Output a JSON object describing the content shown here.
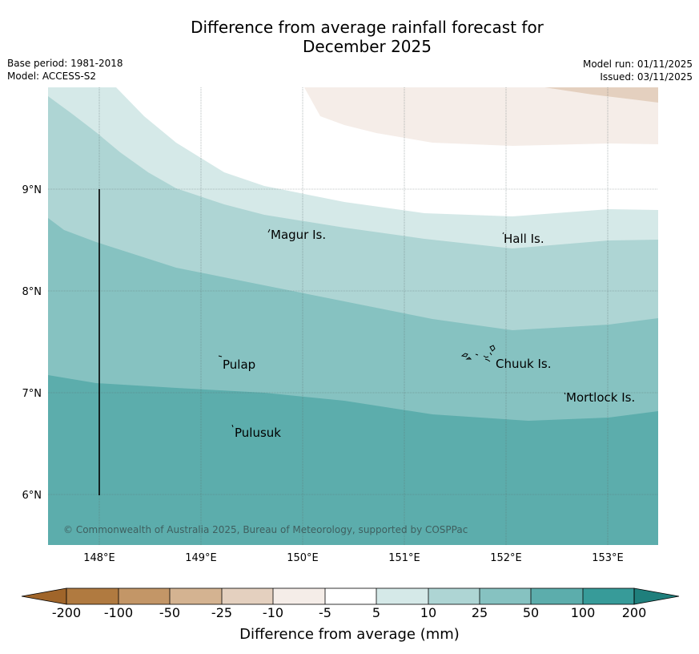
{
  "title_line1": "Difference from average rainfall forecast for",
  "title_line2": "December 2025",
  "meta": {
    "base_period": "Base period: 1981-2018",
    "model": "Model: ACCESS-S2",
    "model_run": "Model run: 01/11/2025",
    "issued": "Issued: 03/11/2025"
  },
  "map": {
    "lon_labels": [
      "148°E",
      "149°E",
      "150°E",
      "151°E",
      "152°E",
      "153°E"
    ],
    "lat_labels": [
      "9°N",
      "8°N",
      "7°N",
      "6°N"
    ],
    "places": [
      "Magur Is.",
      "Hall Is.",
      "Pulap",
      "Chuuk Is.",
      "Mortlock Is.",
      "Pulusuk"
    ],
    "copyright": "© Commonwealth of Australia 2025, Bureau of Meteorology, supported by COSPPac"
  },
  "colorbar": {
    "title": "Difference from average (mm)",
    "ticks": [
      "-200",
      "-100",
      "-50",
      "-25",
      "-10",
      "-5",
      "5",
      "10",
      "25",
      "50",
      "100",
      "200"
    ],
    "colors": {
      "below_min": "#a0652a",
      "c1": "#b07a40",
      "c2": "#c39667",
      "c3": "#d4b391",
      "c4": "#e4d0bf",
      "c5": "#f5ede8",
      "c6": "#ffffff",
      "c7": "#d5e9e8",
      "c8": "#aed5d4",
      "c9": "#86c2c1",
      "c10": "#5cadac",
      "c11": "#379b99",
      "above_max": "#1f7f7c"
    }
  }
}
